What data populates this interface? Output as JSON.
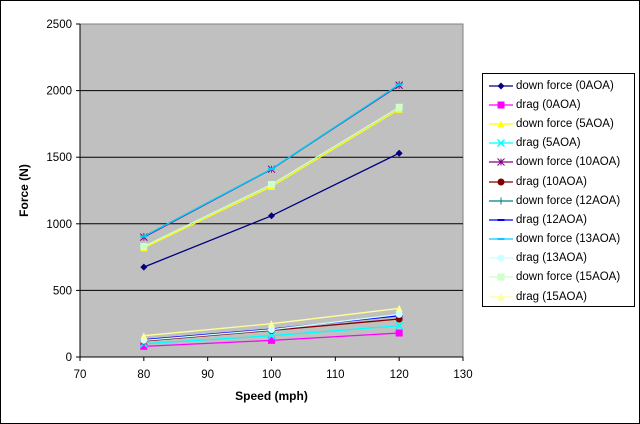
{
  "chart_data": {
    "type": "line",
    "title": "",
    "xlabel": "Speed (mph)",
    "ylabel": "Force (N)",
    "xlim": [
      70,
      130
    ],
    "ylim": [
      0,
      2500
    ],
    "xticks": [
      70,
      80,
      90,
      100,
      110,
      120,
      130
    ],
    "yticks": [
      0,
      500,
      1000,
      1500,
      2000,
      2500
    ],
    "grid": "horizontal",
    "legend": "right",
    "plot_background": "#C0C0C0",
    "x": [
      80,
      100,
      120
    ],
    "series": [
      {
        "name": "down force (0AOA)",
        "values": [
          675,
          1060,
          1530
        ],
        "color": "#000080",
        "marker": "diamond"
      },
      {
        "name": "drag (0AOA)",
        "values": [
          80,
          125,
          180
        ],
        "color": "#FF00FF",
        "marker": "square"
      },
      {
        "name": "down force (5AOA)",
        "values": [
          820,
          1280,
          1860
        ],
        "color": "#FFFF00",
        "marker": "triangle"
      },
      {
        "name": "drag (5AOA)",
        "values": [
          100,
          160,
          235
        ],
        "color": "#00FFFF",
        "marker": "x"
      },
      {
        "name": "down force (10AOA)",
        "values": [
          900,
          1410,
          2040
        ],
        "color": "#800080",
        "marker": "star"
      },
      {
        "name": "drag (10AOA)",
        "values": [
          120,
          200,
          285
        ],
        "color": "#800000",
        "marker": "circle"
      },
      {
        "name": "down force (12AOA)",
        "values": [
          905,
          1410,
          2045
        ],
        "color": "#008080",
        "marker": "plus"
      },
      {
        "name": "drag (12AOA)",
        "values": [
          130,
          210,
          310
        ],
        "color": "#0000FF",
        "marker": "dash"
      },
      {
        "name": "down force (13AOA)",
        "values": [
          905,
          1412,
          2045
        ],
        "color": "#00CCFF",
        "marker": "dash"
      },
      {
        "name": "drag (13AOA)",
        "values": [
          125,
          205,
          320
        ],
        "color": "#CCFFFF",
        "marker": "circle"
      },
      {
        "name": "down force (15AOA)",
        "values": [
          830,
          1295,
          1875
        ],
        "color": "#CCFFCC",
        "marker": "square"
      },
      {
        "name": "drag (15AOA)",
        "values": [
          160,
          250,
          365
        ],
        "color": "#FFFF99",
        "marker": "triangle"
      }
    ]
  }
}
